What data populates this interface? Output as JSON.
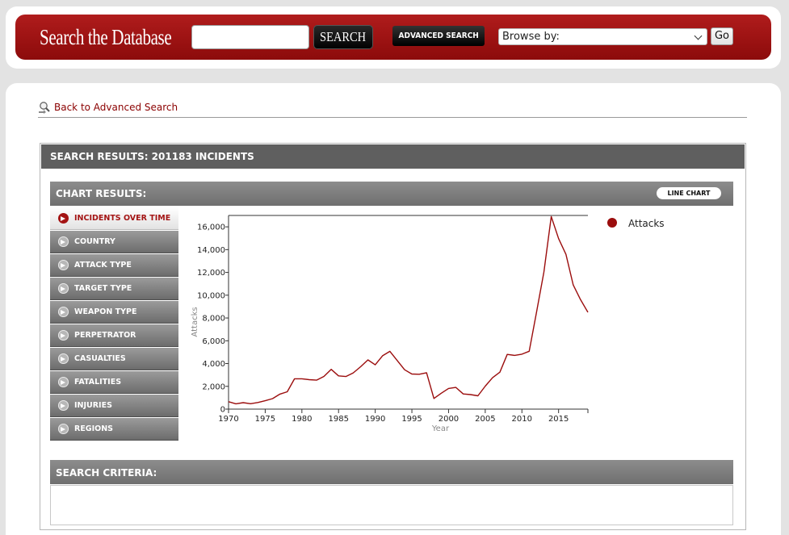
{
  "header": {
    "brand_title": "Search the Database",
    "search_input_value": "",
    "search_button_label": "SEARCH",
    "advanced_search_label": "ADVANCED SEARCH",
    "browse_label": "Browse by:",
    "go_label": "Go"
  },
  "nav": {
    "back_link": "Back to Advanced Search"
  },
  "results": {
    "title": "SEARCH RESULTS: 201183 INCIDENTS"
  },
  "chart_panel": {
    "title": "CHART RESULTS:",
    "chart_type_button": "LINE CHART",
    "menu_items": [
      {
        "label": "INCIDENTS OVER TIME",
        "active": true
      },
      {
        "label": "COUNTRY"
      },
      {
        "label": "ATTACK TYPE"
      },
      {
        "label": "TARGET TYPE"
      },
      {
        "label": "WEAPON TYPE"
      },
      {
        "label": "PERPETRATOR"
      },
      {
        "label": "CASUALTIES"
      },
      {
        "label": "FATALITIES"
      },
      {
        "label": "INJURIES"
      },
      {
        "label": "REGIONS"
      }
    ]
  },
  "criteria": {
    "title": "SEARCH CRITERIA:"
  },
  "colors": {
    "brand_red": "#9e1212",
    "series_line": "#9b0d0d",
    "panel_gray": "#5f5f5f"
  },
  "icons": {
    "back": "magnifier-arrow-icon"
  },
  "chart_data": {
    "type": "line",
    "xlabel": "Year",
    "ylabel": "Attacks",
    "xlim": [
      1970,
      2019
    ],
    "ylim": [
      0,
      17000
    ],
    "x_ticks": [
      1970,
      1975,
      1980,
      1985,
      1990,
      1995,
      2000,
      2005,
      2010,
      2015
    ],
    "y_ticks": [
      0,
      2000,
      4000,
      6000,
      8000,
      10000,
      12000,
      14000,
      16000
    ],
    "x_tick_labels": [
      "1970",
      "1975",
      "1980",
      "1985",
      "1990",
      "1995",
      "2000",
      "2005",
      "2010",
      "2015"
    ],
    "y_tick_labels": [
      "0",
      "2,000",
      "4,000",
      "6,000",
      "8,000",
      "10,000",
      "12,000",
      "14,000",
      "16,000"
    ],
    "legend_position": "top-right",
    "grid": false,
    "series": [
      {
        "name": "Attacks",
        "x": [
          1970,
          1971,
          1972,
          1973,
          1974,
          1975,
          1976,
          1977,
          1978,
          1979,
          1980,
          1981,
          1982,
          1983,
          1984,
          1985,
          1986,
          1987,
          1988,
          1989,
          1990,
          1991,
          1992,
          1994,
          1995,
          1996,
          1997,
          1998,
          1999,
          2000,
          2001,
          2002,
          2003,
          2004,
          2005,
          2006,
          2007,
          2008,
          2009,
          2010,
          2011,
          2012,
          2013,
          2014,
          2015,
          2016,
          2017,
          2018,
          2019
        ],
        "y": [
          651,
          471,
          568,
          473,
          581,
          740,
          923,
          1319,
          1526,
          2662,
          2662,
          2586,
          2544,
          2870,
          3495,
          2915,
          2860,
          3183,
          3721,
          4324,
          3887,
          4683,
          5071,
          3456,
          3081,
          3058,
          3197,
          934,
          1395,
          1814,
          1906,
          1333,
          1278,
          1166,
          2017,
          2758,
          3242,
          4805,
          4721,
          4826,
          5076,
          8522,
          12036,
          16903,
          14965,
          13587,
          10900,
          9607,
          8500
        ]
      }
    ]
  }
}
